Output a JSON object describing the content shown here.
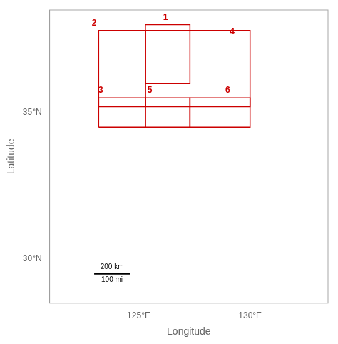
{
  "chart_data": {
    "type": "map",
    "xlabel": "Longitude",
    "ylabel": "Latitude",
    "xlim": [
      121.0,
      133.5
    ],
    "ylim": [
      28.5,
      38.5
    ],
    "xticks": [
      {
        "value": 125,
        "label": "125°E"
      },
      {
        "value": 130,
        "label": "130°E"
      }
    ],
    "yticks": [
      {
        "value": 30,
        "label": "30°N"
      },
      {
        "value": 35,
        "label": "35°N"
      }
    ],
    "grid": false,
    "color": "#cc0000",
    "boxes": [
      {
        "label": "1",
        "x0": 125.3,
        "y0": 36.0,
        "x1": 127.3,
        "y1": 38.0,
        "label_x": 126.2,
        "label_y": 38.1
      },
      {
        "label": "2",
        "x0": 123.2,
        "y0": 35.2,
        "x1": 125.3,
        "y1": 37.8,
        "label_x": 123.0,
        "label_y": 37.9
      },
      {
        "label": "3",
        "x0": 123.2,
        "y0": 34.5,
        "x1": 125.3,
        "y1": 35.5,
        "label_x": 123.3,
        "label_y": 35.6
      },
      {
        "label": "4",
        "x0": 125.3,
        "y0": 35.2,
        "x1": 130.0,
        "y1": 37.8,
        "label_x": 129.2,
        "label_y": 37.6
      },
      {
        "label": "5",
        "x0": 125.3,
        "y0": 34.5,
        "x1": 127.3,
        "y1": 35.5,
        "label_x": 125.5,
        "label_y": 35.6
      },
      {
        "label": "6",
        "x0": 127.3,
        "y0": 34.5,
        "x1": 130.0,
        "y1": 35.5,
        "label_x": 129.0,
        "label_y": 35.6
      }
    ],
    "scale_bar": {
      "x": [
        123.0,
        124.6
      ],
      "y": 29.5,
      "color": "#000000",
      "labels": [
        "200 km",
        "100 mi"
      ]
    }
  }
}
